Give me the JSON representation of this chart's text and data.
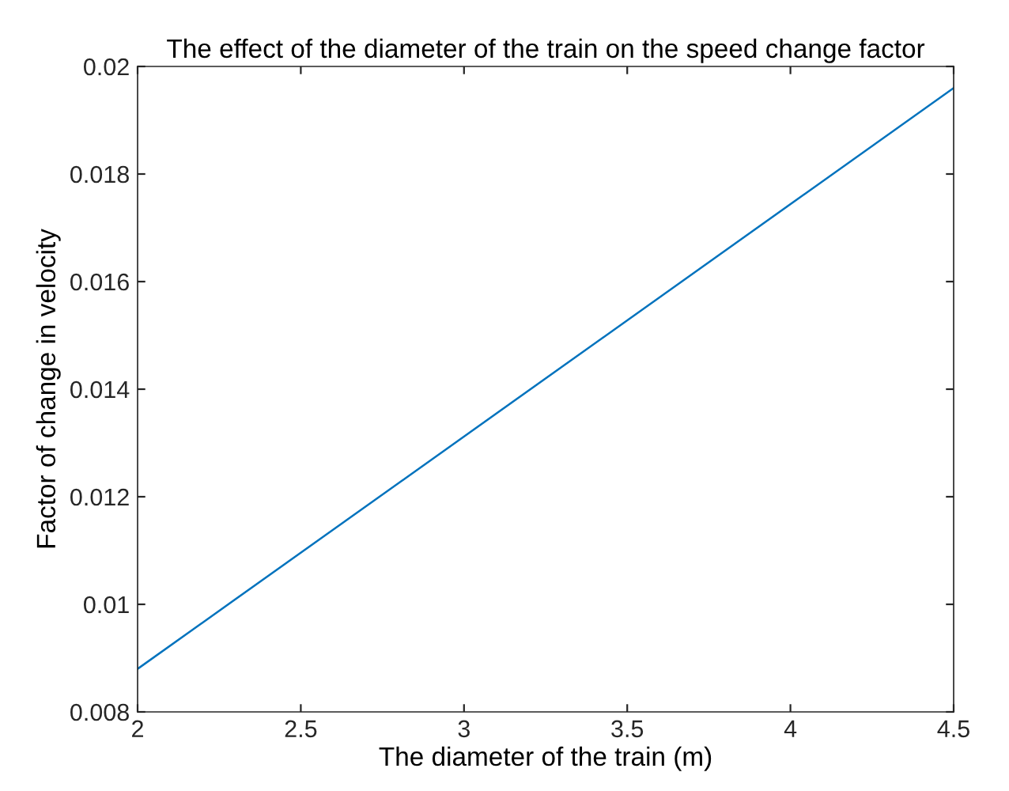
{
  "chart_data": {
    "type": "line",
    "title": "The effect of the diameter of the train on the speed change factor",
    "xlabel": "The diameter of the train (m)",
    "ylabel": "Factor of change in velocity",
    "x": [
      2,
      4.5
    ],
    "series": [
      {
        "color": "#0072bd",
        "values": [
          0.0088,
          0.0196
        ]
      }
    ],
    "xlim": [
      2,
      4.5
    ],
    "xticks": [
      2,
      2.5,
      3,
      3.5,
      4,
      4.5
    ],
    "ylim": [
      0.008,
      0.02
    ],
    "yticks": [
      0.008,
      0.01,
      0.012,
      0.014,
      0.016,
      0.018,
      0.02
    ],
    "grid": false,
    "legend": false,
    "marker": "none",
    "line_style": "solid"
  }
}
